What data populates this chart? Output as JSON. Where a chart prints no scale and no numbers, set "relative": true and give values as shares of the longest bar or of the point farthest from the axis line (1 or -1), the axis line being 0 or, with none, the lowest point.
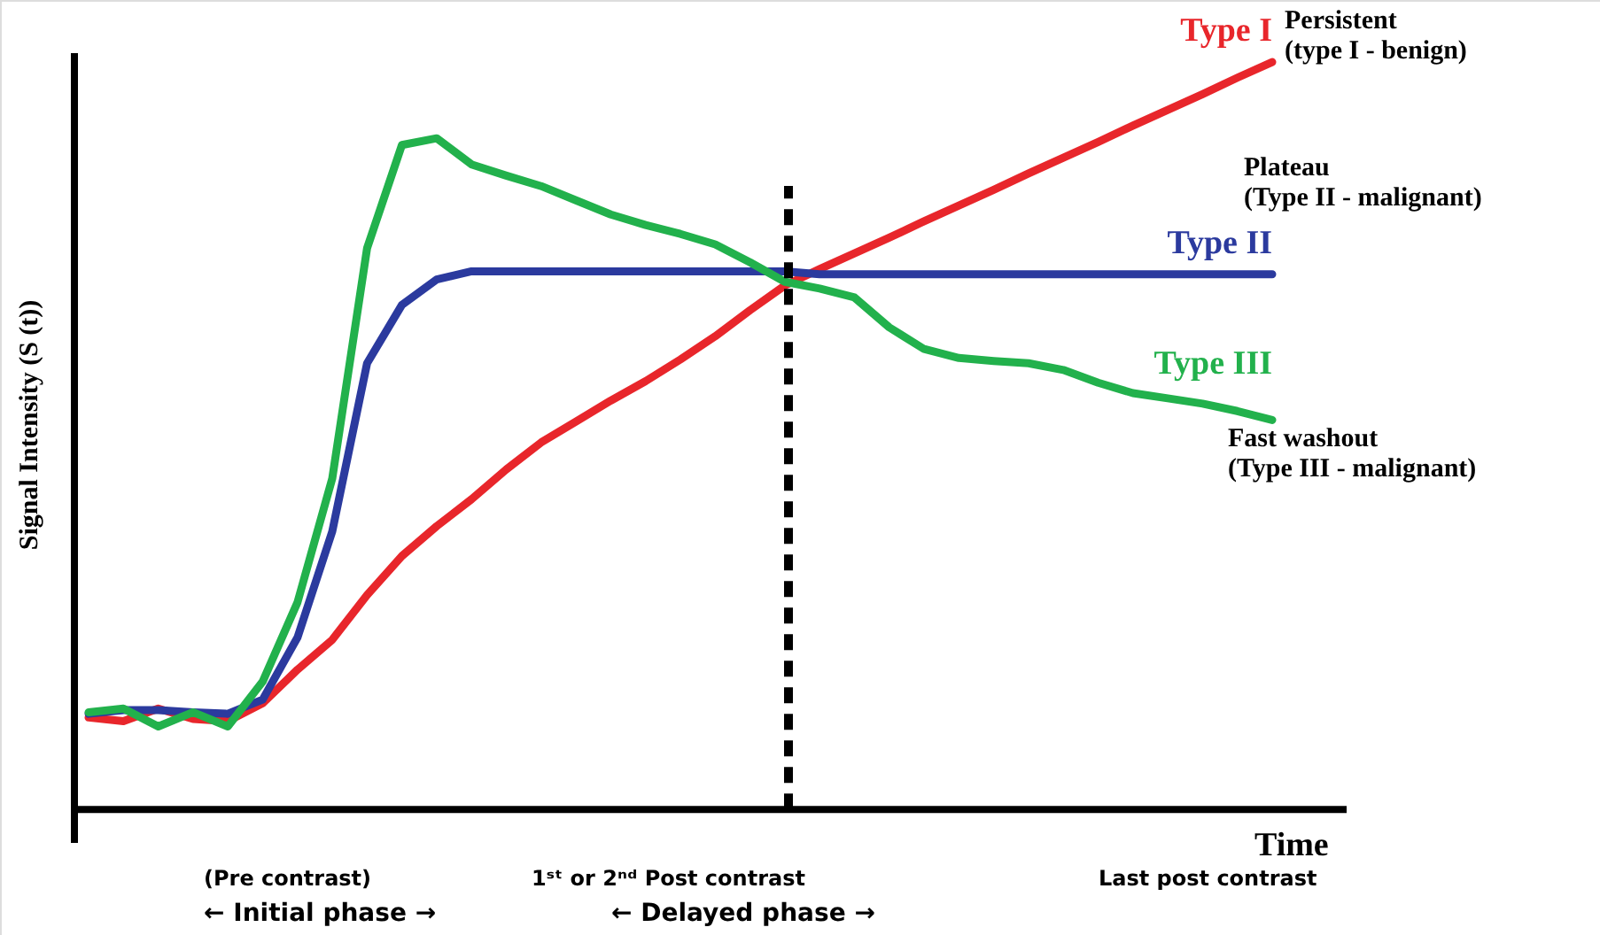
{
  "chart_data": {
    "type": "line",
    "relative": true,
    "xlabel": "Time",
    "ylabel": "Signal Intensity (S (t))",
    "legend": false,
    "marker": "none",
    "line_style": "solid",
    "categories": [
      null,
      null,
      null,
      null,
      null,
      null,
      null,
      null,
      null,
      null,
      null,
      null,
      null,
      null,
      null,
      null,
      null,
      null,
      null,
      null,
      null,
      null,
      null,
      null,
      null,
      null,
      null,
      null,
      null,
      null,
      null,
      null,
      null,
      null,
      null
    ],
    "series": [
      {
        "name": "Type I",
        "color": "#e8262b",
        "values": [
          0.123,
          0.118,
          0.135,
          0.121,
          0.118,
          0.142,
          0.187,
          0.227,
          0.287,
          0.339,
          0.379,
          0.415,
          0.455,
          0.491,
          0.519,
          0.547,
          0.573,
          0.602,
          0.633,
          0.668,
          0.701,
          0.723,
          0.744,
          0.765,
          0.787,
          0.808,
          0.829,
          0.851,
          0.872,
          0.893,
          0.915,
          0.936,
          0.957,
          0.979,
          1
        ]
      },
      {
        "name": "Type II",
        "color": "#2b3a9e",
        "values": [
          0.128,
          0.133,
          0.133,
          0.13,
          0.128,
          0.147,
          0.23,
          0.372,
          0.597,
          0.675,
          0.709,
          0.72,
          0.72,
          0.72,
          0.72,
          0.72,
          0.72,
          0.72,
          0.72,
          0.72,
          0.72,
          0.716,
          0.716,
          0.716,
          0.716,
          0.716,
          0.716,
          0.716,
          0.716,
          0.716,
          0.716,
          0.716,
          0.716,
          0.716,
          0.716
        ]
      },
      {
        "name": "Type III",
        "color": "#22b14c",
        "values": [
          0.13,
          0.135,
          0.111,
          0.13,
          0.111,
          0.171,
          0.277,
          0.443,
          0.751,
          0.889,
          0.898,
          0.863,
          0.848,
          0.834,
          0.815,
          0.796,
          0.782,
          0.77,
          0.756,
          0.732,
          0.706,
          0.697,
          0.685,
          0.645,
          0.616,
          0.604,
          0.6,
          0.597,
          0.588,
          0.571,
          0.557,
          0.55,
          0.543,
          0.533,
          0.521
        ]
      }
    ],
    "annotations": [
      "Persistent\n(type I - benign)",
      "Plateau\n(Type II - malignant)",
      "Fast washout\n(Type III - malignant)",
      "(Pre contrast)",
      "1ˢᵗ or 2ⁿᵈ Post contrast",
      "Last post contrast",
      "← Initial phase →",
      "← Delayed phase →"
    ]
  }
}
